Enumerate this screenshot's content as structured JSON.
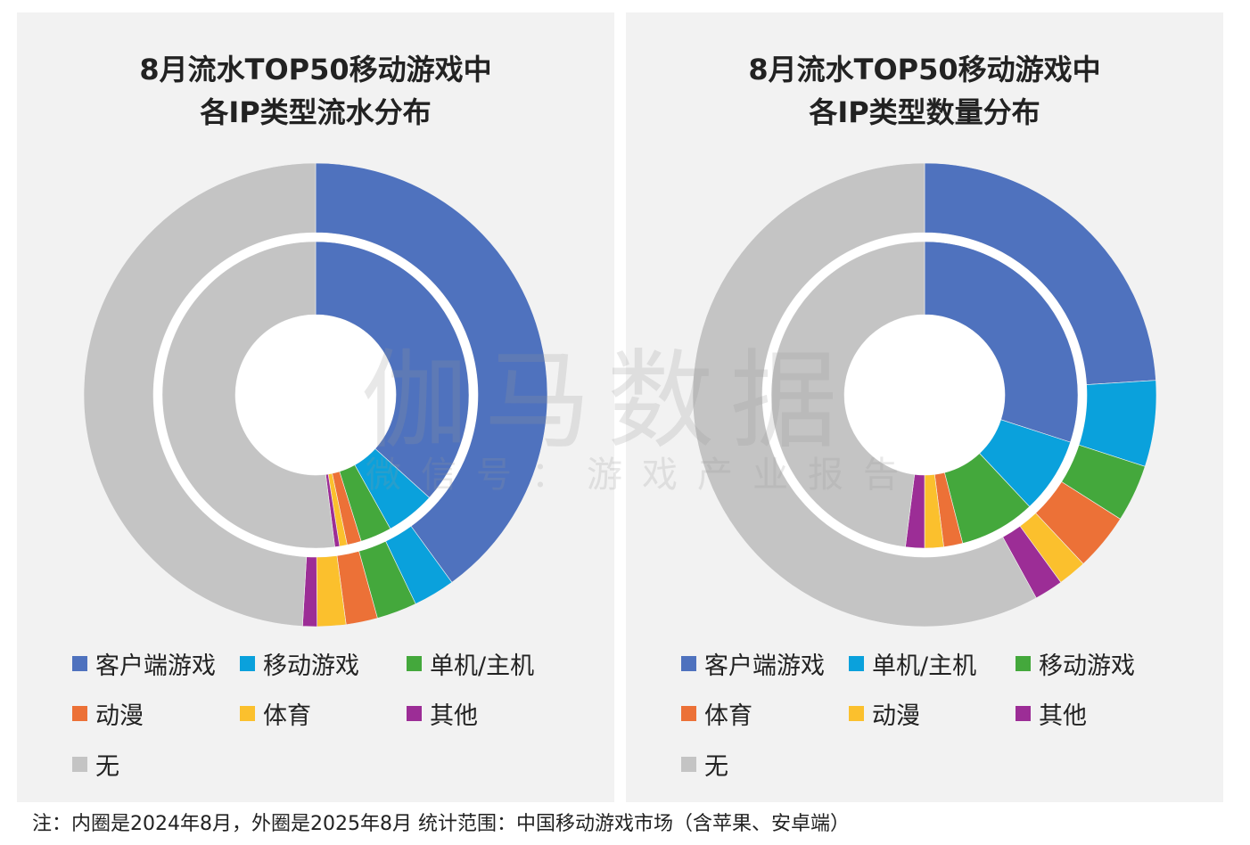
{
  "watermark": {
    "main": "伽马数据",
    "sub": "微信号：游戏产业报告"
  },
  "note": "注：内圈是2024年8月，外圈是2025年8月   统计范围：中国移动游戏市场（含苹果、安卓端）",
  "chart_data": [
    {
      "type": "donut",
      "title_lines": [
        "8月流水TOP50移动游戏中",
        "各IP类型流水分布"
      ],
      "categories": [
        "客户端游戏",
        "移动游戏",
        "单机/主机",
        "动漫",
        "体育",
        "其他",
        "无"
      ],
      "colors": [
        "#4f72be",
        "#0aa1dc",
        "#44a83c",
        "#ec7137",
        "#fbc02d",
        "#9c2d96",
        "#c4c4c4"
      ],
      "series": [
        {
          "ring": "inner",
          "values": [
            36.7,
            5.2,
            3.3,
            1.5,
            0.8,
            0.5,
            52.0
          ]
        },
        {
          "ring": "outer",
          "values": [
            40.0,
            2.9,
            2.8,
            2.2,
            2.0,
            1.0,
            49.1
          ]
        }
      ],
      "legend": {
        "placement": "bottom",
        "items": [
          "客户端游戏",
          "移动游戏",
          "单机/主机",
          "动漫",
          "体育",
          "其他",
          "无"
        ]
      }
    },
    {
      "type": "donut",
      "title_lines": [
        "8月流水TOP50移动游戏中",
        "各IP类型数量分布"
      ],
      "categories": [
        "客户端游戏",
        "单机/主机",
        "移动游戏",
        "体育",
        "动漫",
        "其他",
        "无"
      ],
      "colors": [
        "#4f72be",
        "#0aa1dc",
        "#44a83c",
        "#ec7137",
        "#fbc02d",
        "#9c2d96",
        "#c4c4c4"
      ],
      "series": [
        {
          "ring": "inner",
          "values": [
            30,
            8,
            8,
            2,
            2,
            2,
            48
          ]
        },
        {
          "ring": "outer",
          "values": [
            24,
            6,
            4,
            4,
            2,
            2,
            58
          ]
        }
      ],
      "legend": {
        "placement": "bottom",
        "items": [
          "客户端游戏",
          "单机/主机",
          "移动游戏",
          "体育",
          "动漫",
          "其他",
          "无"
        ]
      }
    }
  ]
}
